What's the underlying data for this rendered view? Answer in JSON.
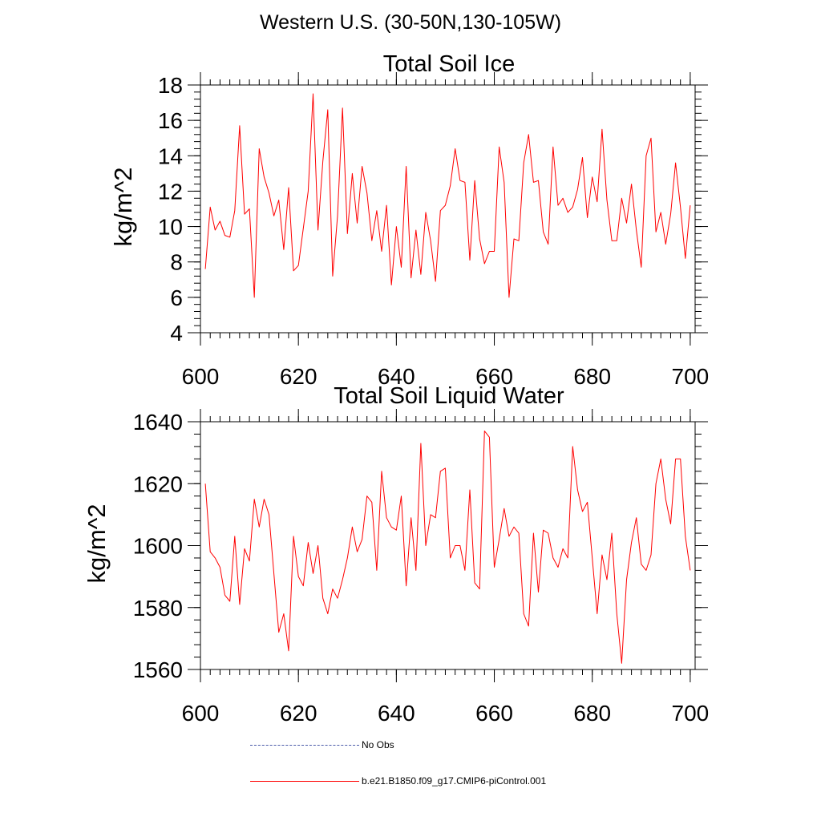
{
  "title": "Western U.S. (30-50N,130-105W)",
  "legend": {
    "entries": [
      {
        "label": "No Obs",
        "color": "#4a5aa8",
        "style": "dashed"
      },
      {
        "label": "b.e21.B1850.f09_g17.CMIP6-piControl.001",
        "color": "#ff0000",
        "style": "solid"
      }
    ]
  },
  "chart_data": [
    {
      "type": "line",
      "title": "Total Soil Ice",
      "xlabel": "",
      "ylabel": "kg/m^2",
      "xlim": [
        600,
        701
      ],
      "ylim": [
        4,
        18
      ],
      "xticks": [
        600,
        620,
        640,
        660,
        680,
        700
      ],
      "yticks": [
        4,
        6,
        8,
        10,
        12,
        14,
        16,
        18
      ],
      "x_minor_step": 2,
      "y_minor_step": 0.4,
      "series": [
        {
          "name": "b.e21.B1850.f09_g17.CMIP6-piControl.001",
          "color": "#ff0000",
          "x_start": 601,
          "x_step": 1,
          "values": [
            7.6,
            11.1,
            9.8,
            10.3,
            9.5,
            9.4,
            10.9,
            15.7,
            10.7,
            11.0,
            6.0,
            14.4,
            12.8,
            11.9,
            10.6,
            11.5,
            8.7,
            12.2,
            7.5,
            7.8,
            9.9,
            12.0,
            17.5,
            9.8,
            13.7,
            16.6,
            7.2,
            10.6,
            16.7,
            9.6,
            13.0,
            10.2,
            13.4,
            11.9,
            9.2,
            10.9,
            8.6,
            11.2,
            6.7,
            10.0,
            7.7,
            13.4,
            7.1,
            9.8,
            7.3,
            10.8,
            9.2,
            6.9,
            10.9,
            11.2,
            12.3,
            14.4,
            12.6,
            12.5,
            8.1,
            12.6,
            9.3,
            7.9,
            8.6,
            8.6,
            14.5,
            12.5,
            6.0,
            9.3,
            9.2,
            13.6,
            15.2,
            12.5,
            12.6,
            9.7,
            9.0,
            14.5,
            11.2,
            11.6,
            10.8,
            11.1,
            12.1,
            13.9,
            10.5,
            12.8,
            11.4,
            15.5,
            11.5,
            9.2,
            9.2,
            11.6,
            10.2,
            12.4,
            9.8,
            7.7,
            14.0,
            15.0,
            9.7,
            10.8,
            9.0,
            10.7,
            13.6,
            11.1,
            8.2,
            11.2
          ]
        }
      ]
    },
    {
      "type": "line",
      "title": "Total Soil Liquid Water",
      "xlabel": "",
      "ylabel": "kg/m^2",
      "xlim": [
        600,
        701
      ],
      "ylim": [
        1560,
        1640
      ],
      "xticks": [
        600,
        620,
        640,
        660,
        680,
        700
      ],
      "yticks": [
        1560,
        1580,
        1600,
        1620,
        1640
      ],
      "x_minor_step": 2,
      "y_minor_step": 4,
      "series": [
        {
          "name": "b.e21.B1850.f09_g17.CMIP6-piControl.001",
          "color": "#ff0000",
          "x_start": 601,
          "x_step": 1,
          "values": [
            1620,
            1598,
            1596,
            1593,
            1584,
            1582,
            1603,
            1581,
            1599,
            1595,
            1615,
            1606,
            1615,
            1610,
            1591,
            1572,
            1578,
            1566,
            1603,
            1590,
            1587,
            1601,
            1591,
            1600,
            1583,
            1578,
            1586,
            1583,
            1589,
            1596,
            1606,
            1598,
            1602,
            1616,
            1614,
            1592,
            1624,
            1609,
            1606,
            1605,
            1616,
            1587,
            1609,
            1592,
            1633,
            1600,
            1610,
            1609,
            1624,
            1625,
            1596,
            1600,
            1600,
            1592,
            1618,
            1588,
            1586,
            1637,
            1635,
            1593,
            1602,
            1612,
            1603,
            1606,
            1604,
            1578,
            1574,
            1604,
            1585,
            1605,
            1604,
            1596,
            1593,
            1599,
            1596,
            1632,
            1618,
            1611,
            1614,
            1596,
            1578,
            1597,
            1589,
            1604,
            1578,
            1562,
            1589,
            1601,
            1609,
            1594,
            1592,
            1597,
            1620,
            1628,
            1615,
            1607,
            1628,
            1628,
            1603,
            1592
          ]
        }
      ]
    }
  ]
}
